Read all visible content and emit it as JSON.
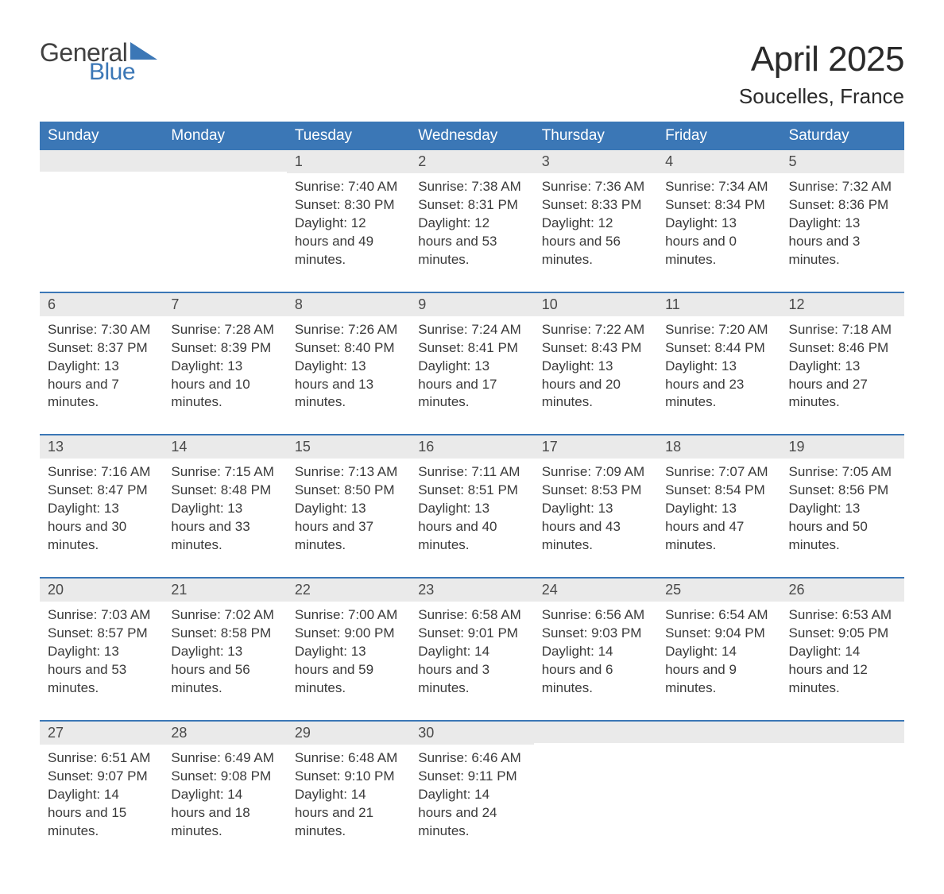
{
  "logo": {
    "word1": "General",
    "word2": "Blue",
    "triangle_color": "#3b77b6"
  },
  "title": "April 2025",
  "location": "Soucelles, France",
  "header_bg": "#3b77b6",
  "header_fg": "#ffffff",
  "daybar_bg": "#eaeaea",
  "rule_color": "#3b77b6",
  "text_color": "#3a3a3a",
  "weekdays": [
    "Sunday",
    "Monday",
    "Tuesday",
    "Wednesday",
    "Thursday",
    "Friday",
    "Saturday"
  ],
  "weeks": [
    [
      null,
      null,
      {
        "n": "1",
        "sunrise": "7:40 AM",
        "sunset": "8:30 PM",
        "daylight": "12 hours and 49 minutes."
      },
      {
        "n": "2",
        "sunrise": "7:38 AM",
        "sunset": "8:31 PM",
        "daylight": "12 hours and 53 minutes."
      },
      {
        "n": "3",
        "sunrise": "7:36 AM",
        "sunset": "8:33 PM",
        "daylight": "12 hours and 56 minutes."
      },
      {
        "n": "4",
        "sunrise": "7:34 AM",
        "sunset": "8:34 PM",
        "daylight": "13 hours and 0 minutes."
      },
      {
        "n": "5",
        "sunrise": "7:32 AM",
        "sunset": "8:36 PM",
        "daylight": "13 hours and 3 minutes."
      }
    ],
    [
      {
        "n": "6",
        "sunrise": "7:30 AM",
        "sunset": "8:37 PM",
        "daylight": "13 hours and 7 minutes."
      },
      {
        "n": "7",
        "sunrise": "7:28 AM",
        "sunset": "8:39 PM",
        "daylight": "13 hours and 10 minutes."
      },
      {
        "n": "8",
        "sunrise": "7:26 AM",
        "sunset": "8:40 PM",
        "daylight": "13 hours and 13 minutes."
      },
      {
        "n": "9",
        "sunrise": "7:24 AM",
        "sunset": "8:41 PM",
        "daylight": "13 hours and 17 minutes."
      },
      {
        "n": "10",
        "sunrise": "7:22 AM",
        "sunset": "8:43 PM",
        "daylight": "13 hours and 20 minutes."
      },
      {
        "n": "11",
        "sunrise": "7:20 AM",
        "sunset": "8:44 PM",
        "daylight": "13 hours and 23 minutes."
      },
      {
        "n": "12",
        "sunrise": "7:18 AM",
        "sunset": "8:46 PM",
        "daylight": "13 hours and 27 minutes."
      }
    ],
    [
      {
        "n": "13",
        "sunrise": "7:16 AM",
        "sunset": "8:47 PM",
        "daylight": "13 hours and 30 minutes."
      },
      {
        "n": "14",
        "sunrise": "7:15 AM",
        "sunset": "8:48 PM",
        "daylight": "13 hours and 33 minutes."
      },
      {
        "n": "15",
        "sunrise": "7:13 AM",
        "sunset": "8:50 PM",
        "daylight": "13 hours and 37 minutes."
      },
      {
        "n": "16",
        "sunrise": "7:11 AM",
        "sunset": "8:51 PM",
        "daylight": "13 hours and 40 minutes."
      },
      {
        "n": "17",
        "sunrise": "7:09 AM",
        "sunset": "8:53 PM",
        "daylight": "13 hours and 43 minutes."
      },
      {
        "n": "18",
        "sunrise": "7:07 AM",
        "sunset": "8:54 PM",
        "daylight": "13 hours and 47 minutes."
      },
      {
        "n": "19",
        "sunrise": "7:05 AM",
        "sunset": "8:56 PM",
        "daylight": "13 hours and 50 minutes."
      }
    ],
    [
      {
        "n": "20",
        "sunrise": "7:03 AM",
        "sunset": "8:57 PM",
        "daylight": "13 hours and 53 minutes."
      },
      {
        "n": "21",
        "sunrise": "7:02 AM",
        "sunset": "8:58 PM",
        "daylight": "13 hours and 56 minutes."
      },
      {
        "n": "22",
        "sunrise": "7:00 AM",
        "sunset": "9:00 PM",
        "daylight": "13 hours and 59 minutes."
      },
      {
        "n": "23",
        "sunrise": "6:58 AM",
        "sunset": "9:01 PM",
        "daylight": "14 hours and 3 minutes."
      },
      {
        "n": "24",
        "sunrise": "6:56 AM",
        "sunset": "9:03 PM",
        "daylight": "14 hours and 6 minutes."
      },
      {
        "n": "25",
        "sunrise": "6:54 AM",
        "sunset": "9:04 PM",
        "daylight": "14 hours and 9 minutes."
      },
      {
        "n": "26",
        "sunrise": "6:53 AM",
        "sunset": "9:05 PM",
        "daylight": "14 hours and 12 minutes."
      }
    ],
    [
      {
        "n": "27",
        "sunrise": "6:51 AM",
        "sunset": "9:07 PM",
        "daylight": "14 hours and 15 minutes."
      },
      {
        "n": "28",
        "sunrise": "6:49 AM",
        "sunset": "9:08 PM",
        "daylight": "14 hours and 18 minutes."
      },
      {
        "n": "29",
        "sunrise": "6:48 AM",
        "sunset": "9:10 PM",
        "daylight": "14 hours and 21 minutes."
      },
      {
        "n": "30",
        "sunrise": "6:46 AM",
        "sunset": "9:11 PM",
        "daylight": "14 hours and 24 minutes."
      },
      null,
      null,
      null
    ]
  ],
  "labels": {
    "sunrise": "Sunrise: ",
    "sunset": "Sunset: ",
    "daylight": "Daylight: "
  }
}
